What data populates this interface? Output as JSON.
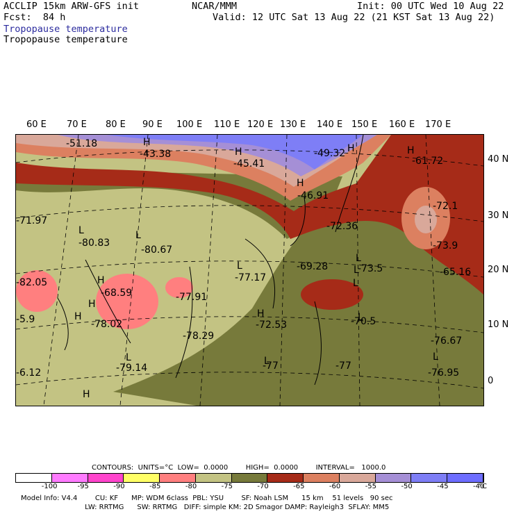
{
  "header": {
    "model": "ACCLIP 15km ARW-GFS init",
    "org": "NCAR/MMM",
    "init": "Init: 00 UTC Wed 10 Aug 22",
    "fcst": "Fcst:  84 h",
    "valid": "Valid: 12 UTC Sat 13 Aug 22 (21 KST Sat 13 Aug 22)",
    "field_blue": "Tropopause temperature",
    "field_black": "Tropopause temperature"
  },
  "lon_labels": [
    "60 E",
    "70 E",
    "80 E",
    "90 E",
    "100 E",
    "110 E",
    "120 E",
    "130 E",
    "140 E",
    "150 E",
    "160 E",
    "170 E"
  ],
  "lat_labels": [
    "40 N",
    "30 N",
    "20 N",
    "10 N",
    "0"
  ],
  "map_labels": [
    {
      "t": "-51.18"
    },
    {
      "t": "H"
    },
    {
      "t": "-43.38"
    },
    {
      "t": "H"
    },
    {
      "t": "-45.41"
    },
    {
      "t": "-49.32"
    },
    {
      "t": "H"
    },
    {
      "t": "H"
    },
    {
      "t": "-61.72"
    },
    {
      "t": "-46.91"
    },
    {
      "t": "H"
    },
    {
      "t": "-72.1"
    },
    {
      "t": "-71.97"
    },
    {
      "t": "-72.36"
    },
    {
      "t": "L"
    },
    {
      "t": "-80.83"
    },
    {
      "t": "L"
    },
    {
      "t": "-80.67"
    },
    {
      "t": "-73.9"
    },
    {
      "t": "L"
    },
    {
      "t": "L"
    },
    {
      "t": "-69.28"
    },
    {
      "t": "L"
    },
    {
      "t": "-73.5"
    },
    {
      "t": "-77.17"
    },
    {
      "t": "L"
    },
    {
      "t": "-82.05"
    },
    {
      "t": "H"
    },
    {
      "t": "-68.59"
    },
    {
      "t": "H"
    },
    {
      "t": "-65.16"
    },
    {
      "t": "-77.91"
    },
    {
      "t": "H"
    },
    {
      "t": "-78.02"
    },
    {
      "t": "H"
    },
    {
      "t": "-72.53"
    },
    {
      "t": "L"
    },
    {
      "t": "-70.5"
    },
    {
      "t": "-5.9"
    },
    {
      "t": "-78.29"
    },
    {
      "t": "-76.67"
    },
    {
      "t": "L"
    },
    {
      "t": "-79.14"
    },
    {
      "t": "L"
    },
    {
      "t": "L"
    },
    {
      "t": "-6.12"
    },
    {
      "t": "-76.95"
    },
    {
      "t": "-77"
    },
    {
      "t": "-77"
    },
    {
      "t": "H"
    }
  ],
  "colorbar": {
    "contours_line": "CONTOURS:  UNITS=°C  LOW=  0.0000        HIGH=  0.0000        INTERVAL=   1000.0",
    "colors": [
      "#ffffff",
      "#ff7bff",
      "#ff44cc",
      "#ffff66",
      "#ff7f7f",
      "#c3c383",
      "#777a3b",
      "#a62b18",
      "#dc8060",
      "#d9a89a",
      "#a58fd6",
      "#7e7ef6",
      "#6d6dff"
    ],
    "ticks": [
      "-100",
      "-95",
      "-90",
      "-85",
      "-80",
      "-75",
      "-70",
      "-65",
      "-60",
      "-55",
      "-50",
      "-45",
      "-40"
    ],
    "unit": "°C"
  },
  "footer": {
    "line1": "Model Info: V4.4        CU: KF      MP: WDM 6class  PBL: YSU        SF: Noah LSM      15 km    51 levels   90 sec",
    "line2": "                             LW: RRTMG      SW: RRTMG   DIFF: simple KM: 2D Smagor DAMP: Rayleigh3  SFLAY: MM5"
  }
}
